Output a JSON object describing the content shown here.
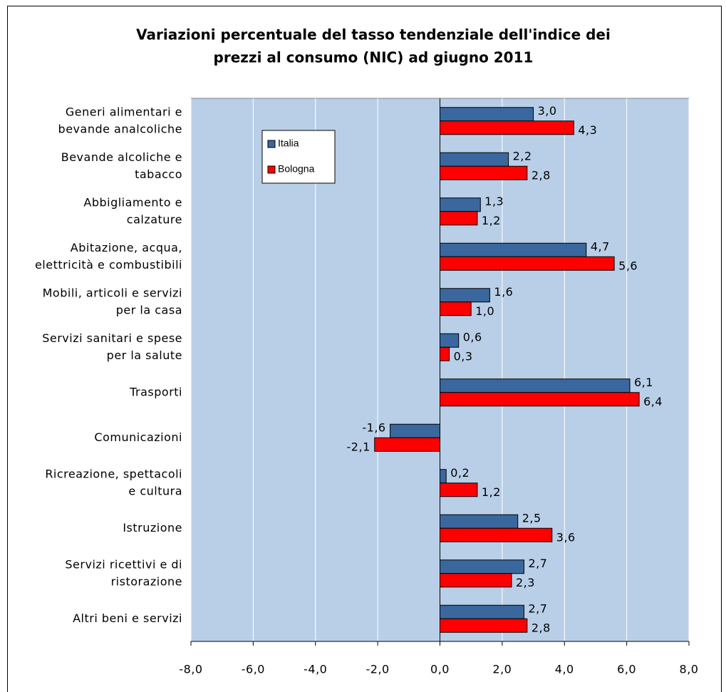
{
  "chart_data": {
    "type": "barh",
    "title": [
      "Variazioni percentuale del tasso tendenziale dell'indice dei",
      "prezzi al consumo (NIC) ad giugno 2011"
    ],
    "categories": [
      [
        "Generi alimentari e",
        "bevande analcoliche"
      ],
      [
        "Bevande alcoliche e",
        "tabacco"
      ],
      [
        "Abbigliamento e",
        "calzature"
      ],
      [
        "Abitazione, acqua,",
        "elettricità e combustibili"
      ],
      [
        "Mobili, articoli e servizi",
        "per la casa"
      ],
      [
        "Servizi sanitari e spese",
        "per la salute"
      ],
      [
        "Trasporti"
      ],
      [
        "Comunicazioni"
      ],
      [
        "Ricreazione, spettacoli",
        "e cultura"
      ],
      [
        "Istruzione"
      ],
      [
        "Servizi ricettivi e di",
        "ristorazione"
      ],
      [
        "Altri beni e servizi"
      ]
    ],
    "series": [
      {
        "name": "Italia",
        "color": "#3a689e",
        "values": [
          3.0,
          2.2,
          1.3,
          4.7,
          1.6,
          0.6,
          6.1,
          -1.6,
          0.2,
          2.5,
          2.7,
          2.7
        ],
        "value_labels": [
          "3,0",
          "2,2",
          "1,3",
          "4,7",
          "1,6",
          "0,6",
          "6,1",
          "-1,6",
          "0,2",
          "2,5",
          "2,7",
          "2,7"
        ]
      },
      {
        "name": "Bologna",
        "color": "#ff0000",
        "values": [
          4.3,
          2.8,
          1.2,
          5.6,
          1.0,
          0.3,
          6.4,
          -2.1,
          1.2,
          3.6,
          2.3,
          2.8
        ],
        "value_labels": [
          "4,3",
          "2,8",
          "1,2",
          "5,6",
          "1,0",
          "0,3",
          "6,4",
          "-2,1",
          "1,2",
          "3,6",
          "2,3",
          "2,8"
        ]
      }
    ],
    "xlim": [
      -8,
      8
    ],
    "xticks": [
      {
        "value": -8,
        "label": "-8,0"
      },
      {
        "value": -6,
        "label": "-6,0"
      },
      {
        "value": -4,
        "label": "-4,0"
      },
      {
        "value": -2,
        "label": "-2,0"
      },
      {
        "value": 0,
        "label": "0,0"
      },
      {
        "value": 2,
        "label": "2,0"
      },
      {
        "value": 4,
        "label": "4,0"
      },
      {
        "value": 6,
        "label": "6,0"
      },
      {
        "value": 8,
        "label": "8,0"
      }
    ],
    "grid": true,
    "background": "#b9cfe8"
  }
}
